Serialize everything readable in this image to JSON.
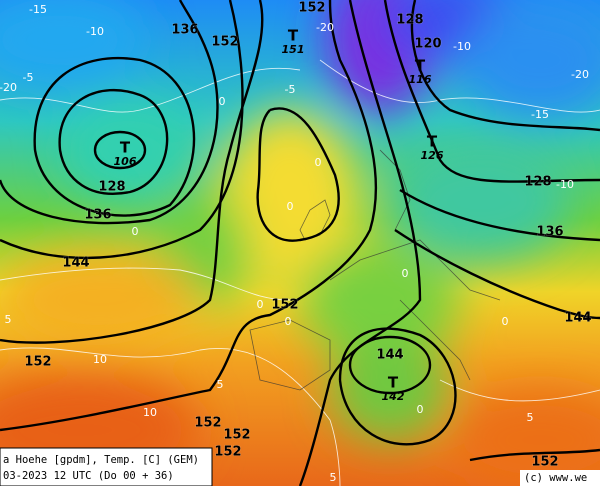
{
  "map": {
    "contour_labels": [
      "136",
      "152",
      "152",
      "128",
      "120",
      "128",
      "136",
      "144",
      "152",
      "128",
      "136",
      "144",
      "144",
      "152",
      "152",
      "152",
      "152",
      "152"
    ],
    "lows": [
      {
        "symbol": "T",
        "value": "106"
      },
      {
        "symbol": "T",
        "value": "151"
      },
      {
        "symbol": "T",
        "value": "116"
      },
      {
        "symbol": "T",
        "value": "126"
      },
      {
        "symbol": "T",
        "value": "142"
      }
    ],
    "temp_labels": [
      "-15",
      "-10",
      "-5",
      "-20",
      "-20",
      "-10",
      "-15",
      "-20",
      "-10",
      "-5",
      "0",
      "0",
      "0",
      "0",
      "0",
      "0",
      "0",
      "5",
      "10",
      "10",
      "5",
      "5",
      "5",
      "0",
      "0"
    ],
    "footer": {
      "line1": "a Hoehe [gpdm], Temp. [C] (GEM)",
      "line2": "03-2023 12 UTC (Do 00 + 36)",
      "credit": "(c) www.we"
    }
  }
}
